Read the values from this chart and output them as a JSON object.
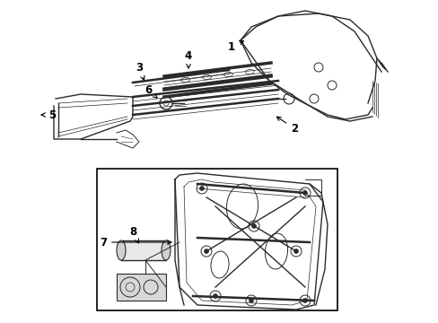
{
  "background_color": "#ffffff",
  "line_color": "#2a2a2a",
  "figsize": [
    4.89,
    3.6
  ],
  "dpi": 100,
  "label_fontsize": 8.5,
  "lw_main": 1.0,
  "lw_thin": 0.6,
  "lw_thick": 1.8
}
